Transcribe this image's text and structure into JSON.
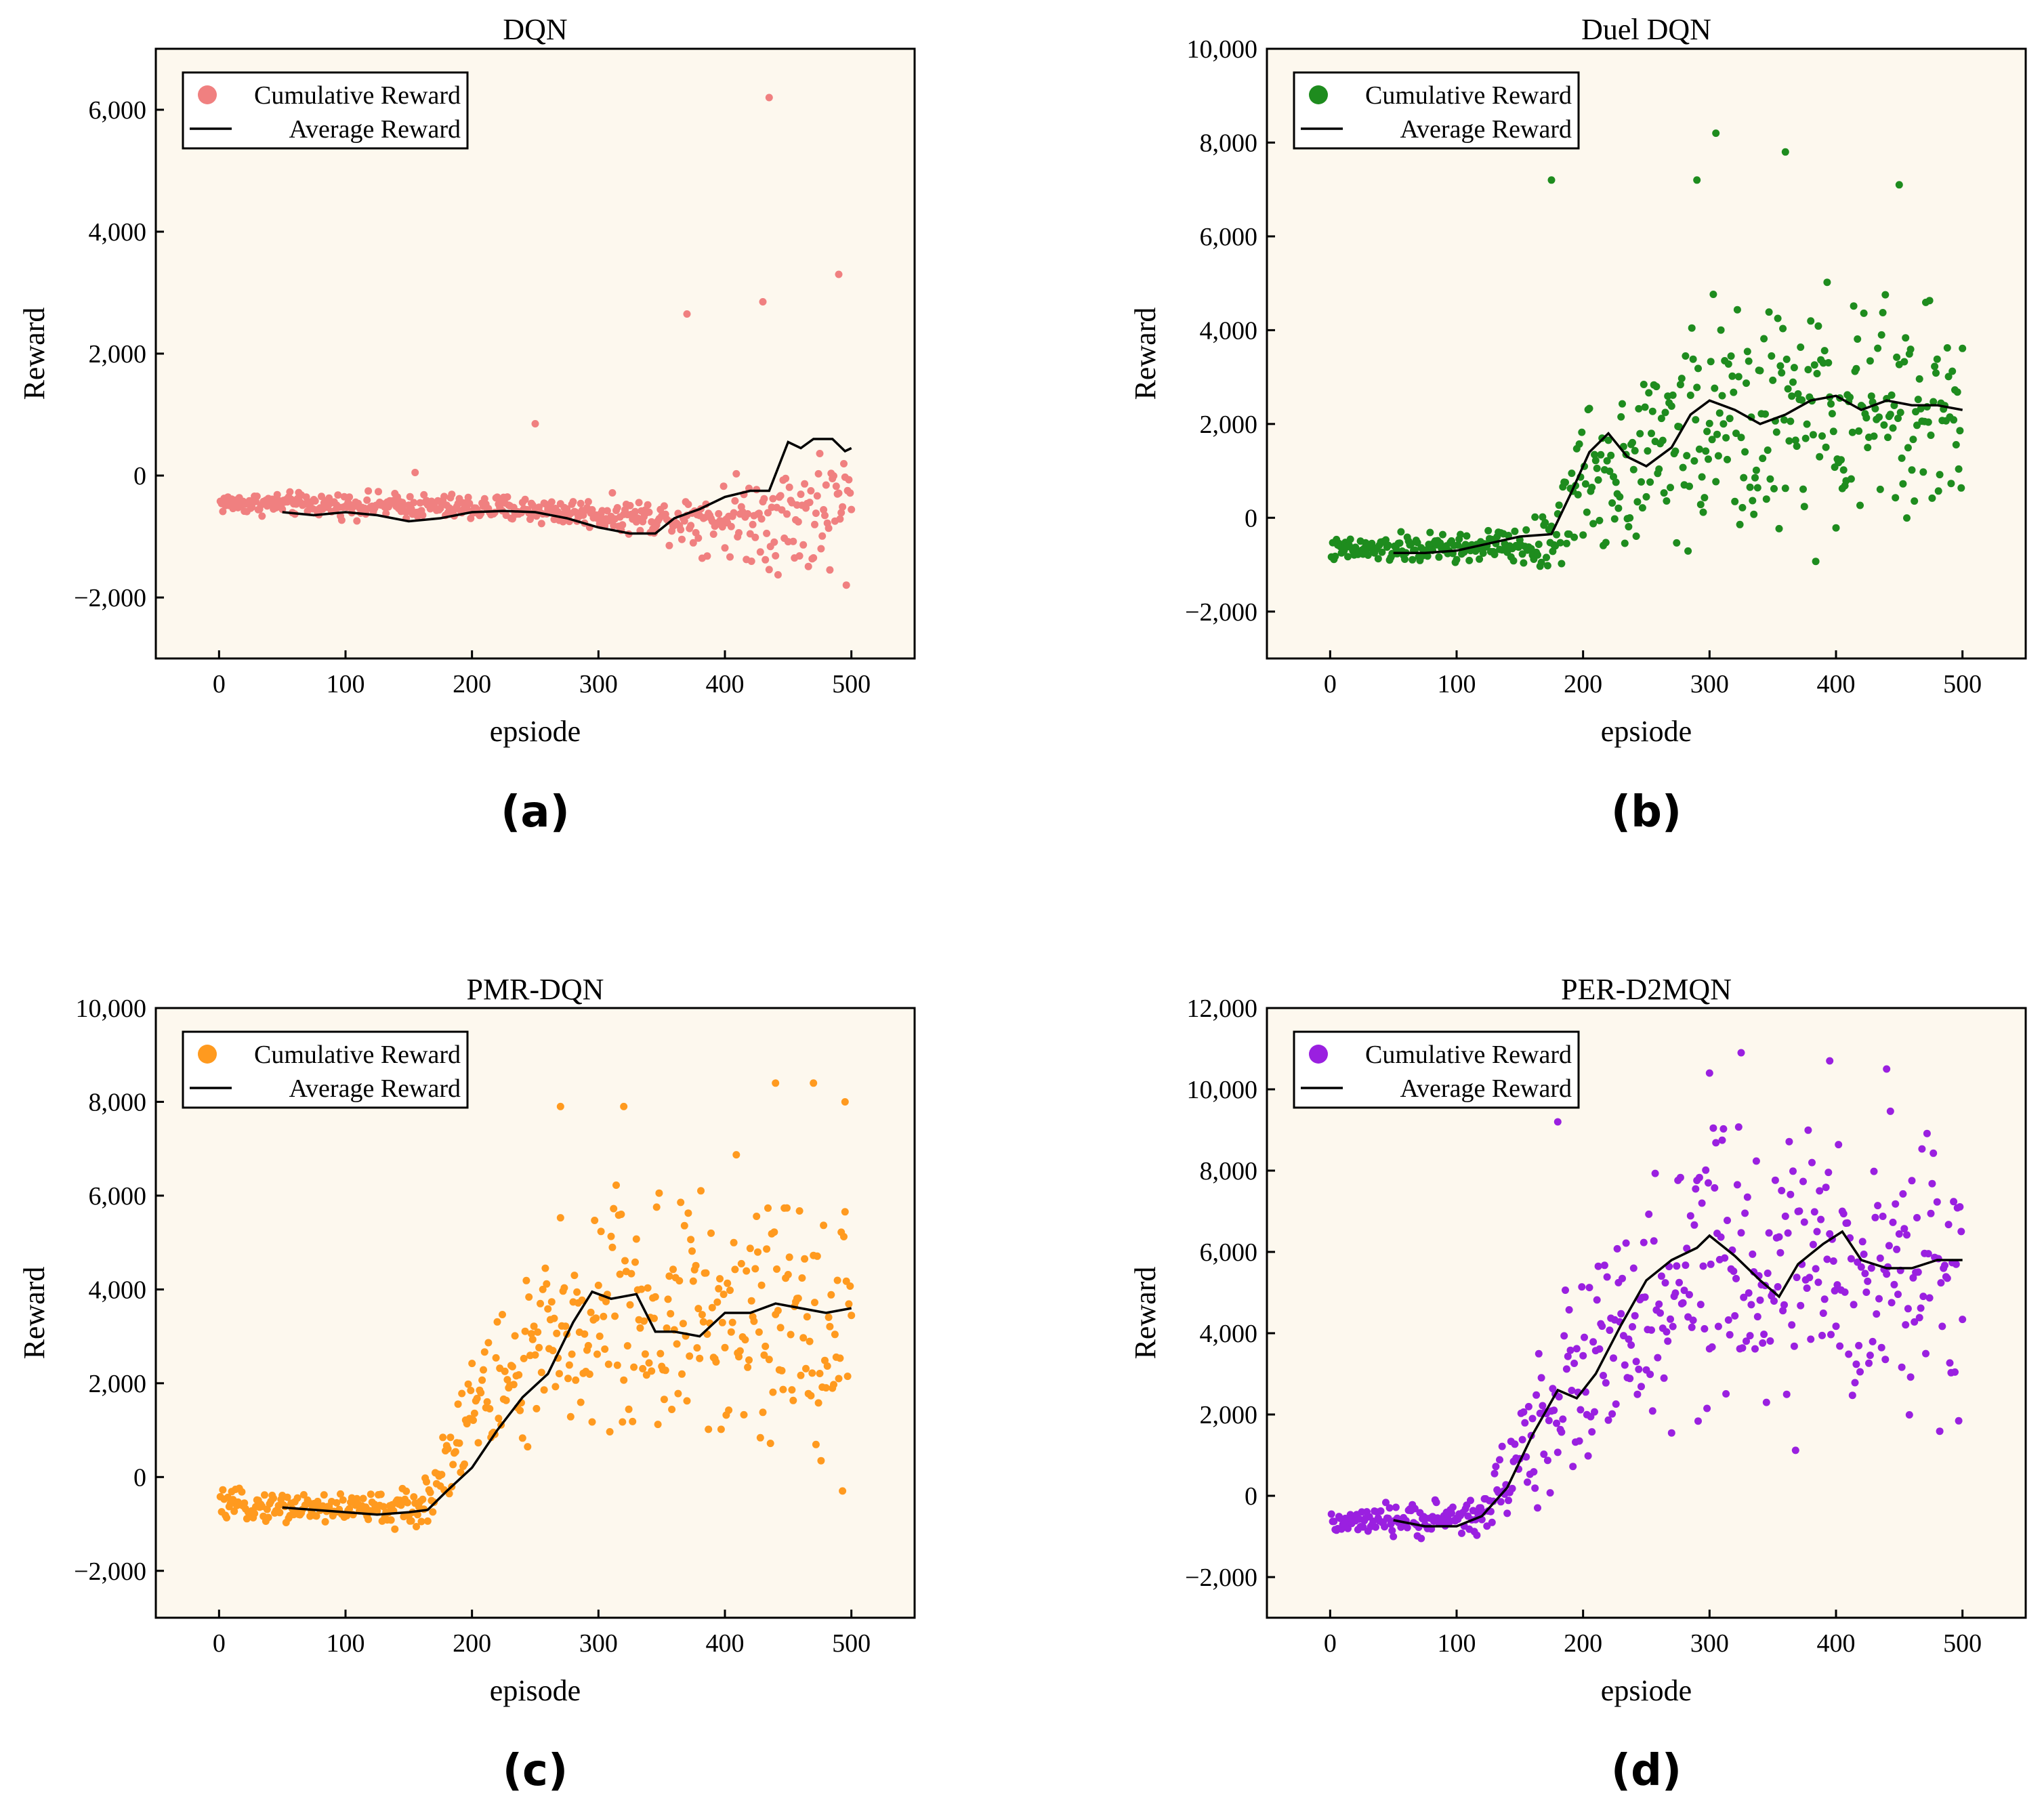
{
  "chart_data": [
    {
      "type": "scatter",
      "panel": "(a)",
      "title": "DQN",
      "xlabel": "epsiode",
      "ylabel": "Reward",
      "xlim": [
        -50,
        550
      ],
      "ylim": [
        -3000,
        7000
      ],
      "xticks": [
        0,
        100,
        200,
        300,
        400,
        500
      ],
      "xtick_labels": [
        "0",
        "100",
        "200",
        "300",
        "400",
        "500"
      ],
      "yticks": [
        -2000,
        0,
        2000,
        4000,
        6000
      ],
      "ytick_labels": [
        "−2,000",
        "0",
        "2,000",
        "4,000",
        "6,000"
      ],
      "legend": [
        "Cumulative Reward",
        "Average Reward"
      ],
      "legend_position": "top-left",
      "color": "#f08080",
      "series": [
        {
          "name": "Average Reward",
          "type": "line",
          "x": [
            50,
            75,
            100,
            125,
            150,
            175,
            200,
            225,
            250,
            275,
            300,
            325,
            345,
            360,
            380,
            400,
            420,
            435,
            450,
            460,
            470,
            485,
            495,
            500
          ],
          "y": [
            -600,
            -650,
            -600,
            -650,
            -750,
            -700,
            -600,
            -580,
            -600,
            -700,
            -850,
            -950,
            -950,
            -700,
            -550,
            -350,
            -250,
            -250,
            550,
            450,
            600,
            600,
            400,
            450
          ]
        }
      ],
      "scatter_profile": {
        "base": [
          [
            0,
            -450
          ],
          [
            150,
            -500
          ],
          [
            250,
            -560
          ],
          [
            350,
            -700
          ],
          [
            400,
            -700
          ],
          [
            500,
            -600
          ]
        ],
        "spread": [
          [
            0,
            250
          ],
          [
            300,
            350
          ],
          [
            350,
            450
          ],
          [
            400,
            900
          ],
          [
            500,
            1800
          ]
        ],
        "outliers": [
          [
            435,
            6200
          ],
          [
            490,
            3300
          ],
          [
            370,
            2650
          ],
          [
            430,
            2850
          ],
          [
            250,
            850
          ],
          [
            155,
            50
          ]
        ]
      }
    },
    {
      "type": "scatter",
      "panel": "(b)",
      "title": "Duel DQN",
      "xlabel": "epsiode",
      "ylabel": "Reward",
      "xlim": [
        -50,
        550
      ],
      "ylim": [
        -3000,
        10000
      ],
      "xticks": [
        0,
        100,
        200,
        300,
        400,
        500
      ],
      "xtick_labels": [
        "0",
        "100",
        "200",
        "300",
        "400",
        "500"
      ],
      "yticks": [
        -2000,
        0,
        2000,
        4000,
        6000,
        8000,
        10000
      ],
      "ytick_labels": [
        "−2,000",
        "0",
        "2,000",
        "4,000",
        "6,000",
        "8,000",
        "10,000"
      ],
      "legend": [
        "Cumulative Reward",
        "Average Reward"
      ],
      "legend_position": "top-left",
      "color": "#1e8c1e",
      "series": [
        {
          "name": "Average Reward",
          "type": "line",
          "x": [
            50,
            75,
            100,
            125,
            150,
            175,
            190,
            205,
            220,
            235,
            250,
            270,
            285,
            300,
            320,
            340,
            360,
            380,
            400,
            420,
            440,
            460,
            480,
            500
          ],
          "y": [
            -750,
            -750,
            -700,
            -550,
            -400,
            -350,
            500,
            1400,
            1800,
            1300,
            1100,
            1500,
            2200,
            2500,
            2300,
            2000,
            2200,
            2500,
            2600,
            2300,
            2500,
            2400,
            2400,
            2300
          ]
        }
      ],
      "scatter_profile": {
        "base": [
          [
            0,
            -700
          ],
          [
            170,
            -600
          ],
          [
            200,
            800
          ],
          [
            300,
            2000
          ],
          [
            500,
            2300
          ]
        ],
        "spread": [
          [
            0,
            350
          ],
          [
            160,
            600
          ],
          [
            200,
            2200
          ],
          [
            300,
            3500
          ],
          [
            500,
            3500
          ]
        ],
        "outliers": [
          [
            175,
            7200
          ],
          [
            305,
            8200
          ],
          [
            360,
            7800
          ],
          [
            290,
            7200
          ],
          [
            450,
            7100
          ]
        ]
      }
    },
    {
      "type": "scatter",
      "panel": "(c)",
      "title": "PMR-DQN",
      "xlabel": "episode",
      "ylabel": "Reward",
      "xlim": [
        -50,
        550
      ],
      "ylim": [
        -3000,
        10000
      ],
      "xticks": [
        0,
        100,
        200,
        300,
        400,
        500
      ],
      "xtick_labels": [
        "0",
        "100",
        "200",
        "300",
        "400",
        "500"
      ],
      "yticks": [
        -2000,
        0,
        2000,
        4000,
        6000,
        8000,
        10000
      ],
      "ytick_labels": [
        "−2,000",
        "0",
        "2,000",
        "4,000",
        "6,000",
        "8,000",
        "10,000"
      ],
      "legend": [
        "Cumulative Reward",
        "Average Reward"
      ],
      "legend_position": "top-left",
      "color": "#ff9a1f",
      "series": [
        {
          "name": "Average Reward",
          "type": "line",
          "x": [
            50,
            75,
            100,
            125,
            150,
            165,
            180,
            200,
            220,
            240,
            260,
            280,
            295,
            310,
            330,
            345,
            360,
            380,
            400,
            420,
            440,
            460,
            480,
            500
          ],
          "y": [
            -650,
            -700,
            -750,
            -800,
            -750,
            -700,
            -300,
            200,
            1000,
            1700,
            2200,
            3300,
            3950,
            3800,
            3900,
            3100,
            3100,
            3000,
            3500,
            3500,
            3700,
            3600,
            3500,
            3600
          ]
        }
      ],
      "scatter_profile": {
        "base": [
          [
            0,
            -600
          ],
          [
            160,
            -700
          ],
          [
            200,
            1500
          ],
          [
            300,
            3500
          ],
          [
            500,
            3200
          ]
        ],
        "spread": [
          [
            0,
            400
          ],
          [
            160,
            600
          ],
          [
            200,
            2000
          ],
          [
            300,
            4000
          ],
          [
            500,
            4200
          ]
        ],
        "outliers": [
          [
            470,
            8400
          ],
          [
            440,
            8400
          ],
          [
            495,
            8000
          ],
          [
            270,
            7900
          ],
          [
            320,
            7900
          ]
        ]
      }
    },
    {
      "type": "scatter",
      "panel": "(d)",
      "title": "PER-D2MQN",
      "xlabel": "epsiode",
      "ylabel": "Reward",
      "xlim": [
        -50,
        550
      ],
      "ylim": [
        -3000,
        12000
      ],
      "xticks": [
        0,
        100,
        200,
        300,
        400,
        500
      ],
      "xtick_labels": [
        "0",
        "100",
        "200",
        "300",
        "400",
        "500"
      ],
      "yticks": [
        -2000,
        0,
        2000,
        4000,
        6000,
        8000,
        10000,
        12000
      ],
      "ytick_labels": [
        "−2,000",
        "0",
        "2,000",
        "4,000",
        "6,000",
        "8,000",
        "10,000",
        "12,000"
      ],
      "legend": [
        "Cumulative Reward",
        "Average Reward"
      ],
      "legend_position": "top-left",
      "color": "#9a20e0",
      "series": [
        {
          "name": "Average Reward",
          "type": "line",
          "x": [
            50,
            75,
            100,
            120,
            140,
            160,
            180,
            195,
            210,
            230,
            250,
            270,
            290,
            300,
            320,
            340,
            355,
            370,
            390,
            405,
            420,
            440,
            460,
            480,
            500
          ],
          "y": [
            -600,
            -750,
            -750,
            -500,
            200,
            1500,
            2600,
            2400,
            3000,
            4200,
            5300,
            5800,
            6100,
            6400,
            5900,
            5300,
            4900,
            5700,
            6200,
            6500,
            5800,
            5600,
            5600,
            5800,
            5800
          ]
        }
      ],
      "scatter_profile": {
        "base": [
          [
            0,
            -700
          ],
          [
            120,
            -500
          ],
          [
            180,
            2500
          ],
          [
            300,
            5500
          ],
          [
            500,
            5500
          ]
        ],
        "spread": [
          [
            0,
            400
          ],
          [
            120,
            700
          ],
          [
            180,
            3500
          ],
          [
            300,
            5000
          ],
          [
            500,
            4500
          ]
        ],
        "outliers": [
          [
            325,
            10900
          ],
          [
            395,
            10700
          ],
          [
            300,
            10400
          ],
          [
            440,
            10500
          ],
          [
            180,
            9200
          ]
        ]
      }
    }
  ]
}
